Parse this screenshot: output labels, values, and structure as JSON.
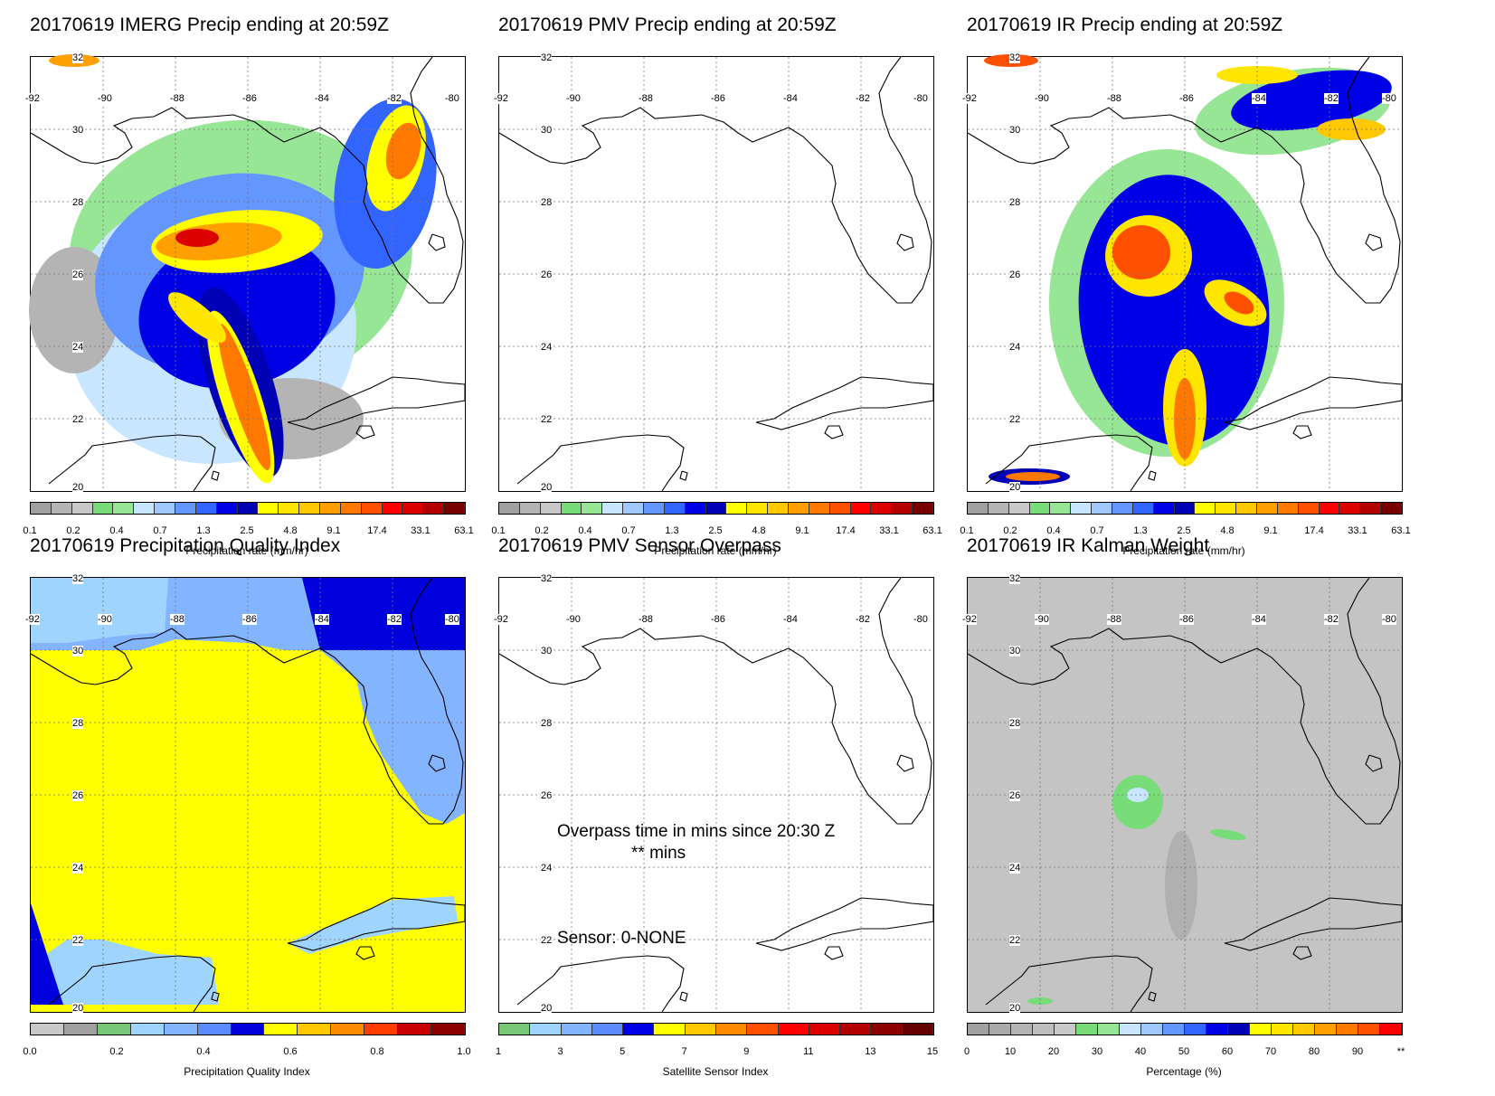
{
  "lon_labels": [
    "-92",
    "-90",
    "-88",
    "-86",
    "-84",
    "-82",
    "-80"
  ],
  "lat_labels": [
    "32",
    "30",
    "28",
    "26",
    "24",
    "22",
    "20"
  ],
  "precip_scale": {
    "ticks": [
      "0.1",
      "0.2",
      "0.4",
      "0.7",
      "1.3",
      "2.5",
      "4.8",
      "9.1",
      "17.4",
      "33.1",
      "63.1"
    ],
    "title": "Precipitation rate (mm/hr)"
  },
  "panels": [
    {
      "title": "20170619 IMERG Precip ending at 20:59Z",
      "kind": "imerg"
    },
    {
      "title": "20170619 PMV Precip ending at 20:59Z",
      "kind": "blank"
    },
    {
      "title": "20170619 IR Precip ending at 20:59Z",
      "kind": "ir"
    },
    {
      "title": "20170619 Precipitation Quality Index",
      "kind": "pqi",
      "scale_ticks": [
        "0.0",
        "0.2",
        "0.4",
        "0.6",
        "0.8",
        "1.0"
      ],
      "scale_title": "Precipitation Quality Index"
    },
    {
      "title": "20170619 PMV Sensor Overpass",
      "kind": "sensor",
      "scale_ticks": [
        "1",
        "3",
        "5",
        "7",
        "9",
        "11",
        "13",
        "15"
      ],
      "scale_title": "Satellite Sensor Index",
      "overpass_line1": "Overpass time in mins since 20:30 Z",
      "overpass_line2": "** mins",
      "sensor_text": "Sensor:   0-NONE"
    },
    {
      "title": "20170619 IR Kalman Weight",
      "kind": "kalman",
      "scale_ticks": [
        "0",
        "10",
        "20",
        "30",
        "40",
        "50",
        "60",
        "70",
        "80",
        "90",
        "**"
      ],
      "scale_title": "Percentage (%)"
    }
  ],
  "colors": {
    "precip": [
      "#a0a0a0",
      "#b4b4b4",
      "#c8c8c8",
      "#78dc78",
      "#96e696",
      "#c8e6ff",
      "#a0c8ff",
      "#6496ff",
      "#3264ff",
      "#0000e6",
      "#0000b4",
      "#ffff00",
      "#ffe600",
      "#ffc800",
      "#ffa000",
      "#ff7800",
      "#ff5000",
      "#ff0000",
      "#dc0000",
      "#b40000",
      "#780000"
    ],
    "pqi": [
      "#c8c8c8",
      "#a0a0a0",
      "#78c878",
      "#9fd4ff",
      "#82b4ff",
      "#5a8cff",
      "#0000dc",
      "#ffff00",
      "#ffc800",
      "#ff8c00",
      "#ff3c00",
      "#c80000",
      "#8c0000"
    ],
    "sensor": [
      "#78c878",
      "#9fd4ff",
      "#82b4ff",
      "#5a8cff",
      "#0000e6",
      "#ffff00",
      "#ffc800",
      "#ff8c00",
      "#ff5000",
      "#ff0000",
      "#dc0000",
      "#b40000",
      "#8c0000",
      "#640000"
    ],
    "kalman": [
      "#a0a0a0",
      "#aaaaaa",
      "#b4b4b4",
      "#bebebe",
      "#c8c8c8",
      "#78dc78",
      "#96e696",
      "#c8e6ff",
      "#a0c8ff",
      "#6496ff",
      "#3264ff",
      "#0000e6",
      "#0000b4",
      "#ffff00",
      "#ffe600",
      "#ffc800",
      "#ffa000",
      "#ff7800",
      "#ff5000",
      "#ff0000"
    ]
  }
}
